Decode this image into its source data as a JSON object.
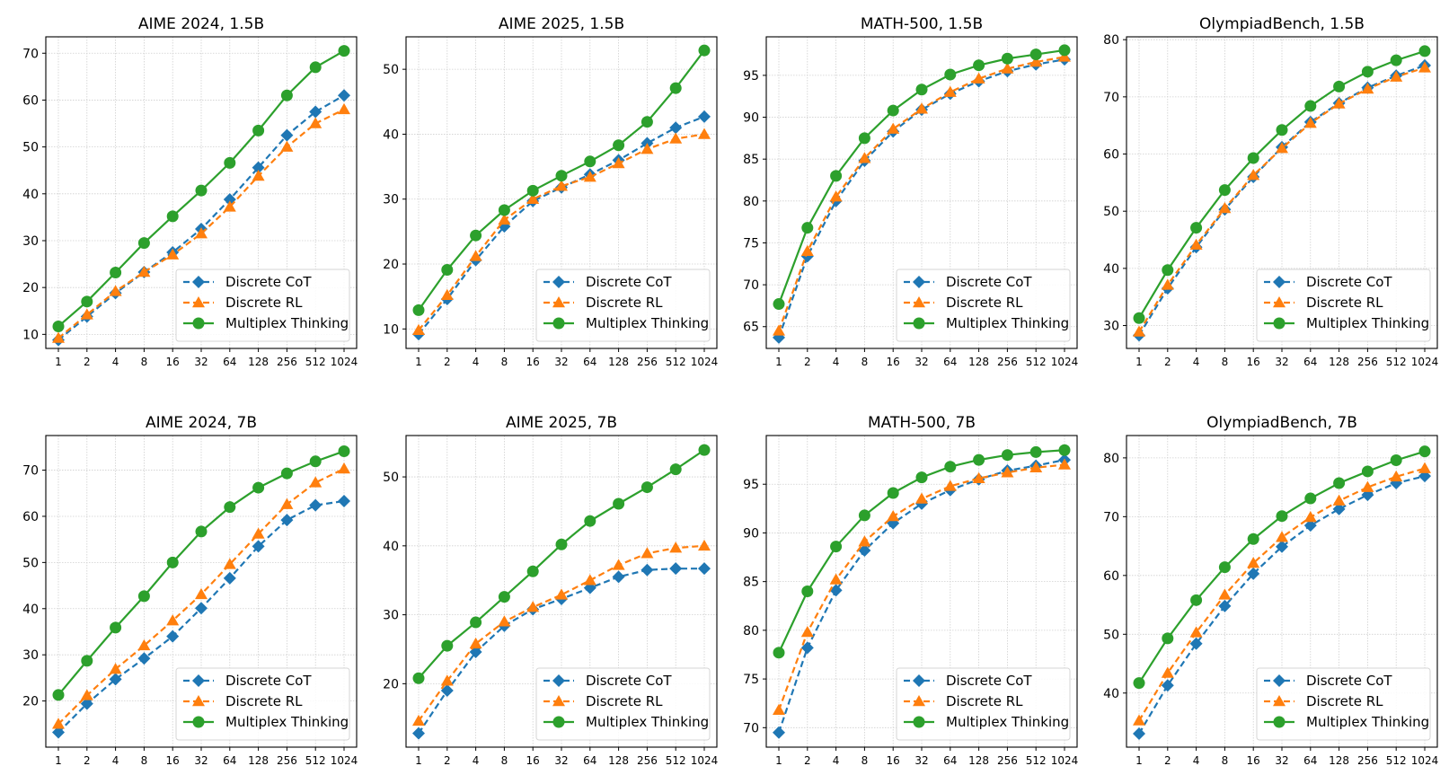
{
  "figure": {
    "legend_placement": "lower-right",
    "x_scale": "log2"
  },
  "series_styles": [
    {
      "name": "Discrete CoT",
      "color": "#1f77b4",
      "marker": "diamond",
      "line": "dashed"
    },
    {
      "name": "Discrete RL",
      "color": "#ff7f0e",
      "marker": "triangle",
      "line": "dashed"
    },
    {
      "name": "Multiplex Thinking",
      "color": "#2ca02c",
      "marker": "circle",
      "line": "solid"
    }
  ],
  "chart_data": [
    {
      "type": "line",
      "title": "AIME 2024, 1.5B",
      "xlabel": "",
      "ylabel": "",
      "categories": [
        "1",
        "2",
        "4",
        "8",
        "16",
        "32",
        "64",
        "128",
        "256",
        "512",
        "1024"
      ],
      "ylim": [
        7,
        73.5
      ],
      "yticks": [
        10,
        20,
        30,
        40,
        50,
        60,
        70
      ],
      "grid": true,
      "series": [
        {
          "name": "Discrete CoT",
          "values": [
            8.8,
            13.8,
            18.8,
            23.3,
            27.5,
            32.5,
            38.8,
            45.6,
            52.5,
            57.5,
            61.0
          ]
        },
        {
          "name": "Discrete RL",
          "values": [
            9.2,
            14.2,
            19.2,
            23.3,
            27.0,
            31.5,
            37.2,
            43.8,
            50.0,
            55.0,
            58.0
          ]
        },
        {
          "name": "Multiplex Thinking",
          "values": [
            11.7,
            17.0,
            23.2,
            29.5,
            35.2,
            40.7,
            46.6,
            53.5,
            61.0,
            67.0,
            70.5
          ]
        }
      ]
    },
    {
      "type": "line",
      "title": "AIME 2025, 1.5B",
      "xlabel": "",
      "ylabel": "",
      "categories": [
        "1",
        "2",
        "4",
        "8",
        "16",
        "32",
        "64",
        "128",
        "256",
        "512",
        "1024"
      ],
      "ylim": [
        7,
        55
      ],
      "yticks": [
        10,
        20,
        30,
        40,
        50
      ],
      "grid": true,
      "series": [
        {
          "name": "Discrete CoT",
          "values": [
            9.2,
            14.6,
            20.6,
            25.8,
            29.7,
            31.8,
            33.8,
            36.0,
            38.6,
            41.0,
            42.7
          ]
        },
        {
          "name": "Discrete RL",
          "values": [
            9.8,
            15.2,
            21.2,
            26.8,
            30.0,
            32.0,
            33.4,
            35.5,
            37.7,
            39.3,
            40.0
          ]
        },
        {
          "name": "Multiplex Thinking",
          "values": [
            12.9,
            19.1,
            24.4,
            28.3,
            31.3,
            33.6,
            35.8,
            38.3,
            41.9,
            47.1,
            52.9
          ]
        }
      ]
    },
    {
      "type": "line",
      "title": "MATH-500, 1.5B",
      "xlabel": "",
      "ylabel": "",
      "categories": [
        "1",
        "2",
        "4",
        "8",
        "16",
        "32",
        "64",
        "128",
        "256",
        "512",
        "1024"
      ],
      "ylim": [
        62.4,
        99.6
      ],
      "yticks": [
        65,
        70,
        75,
        80,
        85,
        90,
        95
      ],
      "grid": true,
      "series": [
        {
          "name": "Discrete CoT",
          "values": [
            63.7,
            73.4,
            80.0,
            84.8,
            88.3,
            90.9,
            92.8,
            94.3,
            95.5,
            96.3,
            96.9
          ]
        },
        {
          "name": "Discrete RL",
          "values": [
            64.5,
            74.0,
            80.5,
            85.1,
            88.6,
            91.0,
            93.0,
            94.6,
            95.8,
            96.6,
            97.2
          ]
        },
        {
          "name": "Multiplex Thinking",
          "values": [
            67.7,
            76.8,
            83.0,
            87.5,
            90.8,
            93.3,
            95.1,
            96.2,
            97.0,
            97.5,
            98.0
          ]
        }
      ]
    },
    {
      "type": "line",
      "title": "OlympiadBench, 1.5B",
      "xlabel": "",
      "ylabel": "",
      "categories": [
        "1",
        "2",
        "4",
        "8",
        "16",
        "32",
        "64",
        "128",
        "256",
        "512",
        "1024"
      ],
      "ylim": [
        26,
        80.5
      ],
      "yticks": [
        30,
        40,
        50,
        60,
        70,
        80
      ],
      "grid": true,
      "series": [
        {
          "name": "Discrete CoT",
          "values": [
            28.3,
            36.5,
            43.7,
            50.3,
            56.0,
            61.2,
            65.6,
            68.9,
            71.6,
            73.7,
            75.5
          ]
        },
        {
          "name": "Discrete RL",
          "values": [
            28.9,
            37.1,
            44.1,
            50.5,
            56.3,
            61.0,
            65.4,
            68.8,
            71.4,
            73.5,
            75.1
          ]
        },
        {
          "name": "Multiplex Thinking",
          "values": [
            31.3,
            39.7,
            47.1,
            53.7,
            59.3,
            64.2,
            68.4,
            71.8,
            74.4,
            76.4,
            78.0
          ]
        }
      ]
    },
    {
      "type": "line",
      "title": "AIME 2024, 7B",
      "xlabel": "",
      "ylabel": "",
      "categories": [
        "1",
        "2",
        "4",
        "8",
        "16",
        "32",
        "64",
        "128",
        "256",
        "512",
        "1024"
      ],
      "ylim": [
        10,
        77.5
      ],
      "yticks": [
        20,
        30,
        40,
        50,
        60,
        70
      ],
      "grid": true,
      "series": [
        {
          "name": "Discrete CoT",
          "values": [
            13.2,
            19.4,
            24.7,
            29.2,
            34.0,
            40.1,
            46.6,
            53.5,
            59.2,
            62.4,
            63.3
          ]
        },
        {
          "name": "Discrete RL",
          "values": [
            15.0,
            21.2,
            26.9,
            32.0,
            37.4,
            43.1,
            49.6,
            56.2,
            62.6,
            67.3,
            70.3
          ]
        },
        {
          "name": "Multiplex Thinking",
          "values": [
            21.3,
            28.7,
            35.9,
            42.7,
            50.0,
            56.7,
            62.0,
            66.2,
            69.3,
            71.9,
            74.1
          ]
        }
      ]
    },
    {
      "type": "line",
      "title": "AIME 2025, 7B",
      "xlabel": "",
      "ylabel": "",
      "categories": [
        "1",
        "2",
        "4",
        "8",
        "16",
        "32",
        "64",
        "128",
        "256",
        "512",
        "1024"
      ],
      "ylim": [
        10.8,
        56
      ],
      "yticks": [
        20,
        30,
        40,
        50
      ],
      "grid": true,
      "series": [
        {
          "name": "Discrete CoT",
          "values": [
            12.8,
            19.0,
            24.6,
            28.4,
            30.8,
            32.3,
            33.9,
            35.5,
            36.5,
            36.7,
            36.7
          ]
        },
        {
          "name": "Discrete RL",
          "values": [
            14.6,
            20.4,
            25.8,
            29.0,
            31.1,
            32.9,
            35.0,
            37.2,
            38.9,
            39.7,
            40.0
          ]
        },
        {
          "name": "Multiplex Thinking",
          "values": [
            20.8,
            25.5,
            28.9,
            32.6,
            36.3,
            40.2,
            43.6,
            46.1,
            48.5,
            51.1,
            53.9
          ]
        }
      ]
    },
    {
      "type": "line",
      "title": "MATH-500, 7B",
      "xlabel": "",
      "ylabel": "",
      "categories": [
        "1",
        "2",
        "4",
        "8",
        "16",
        "32",
        "64",
        "128",
        "256",
        "512",
        "1024"
      ],
      "ylim": [
        68,
        100
      ],
      "yticks": [
        70,
        75,
        80,
        85,
        90,
        95
      ],
      "grid": true,
      "series": [
        {
          "name": "Discrete CoT",
          "values": [
            69.5,
            78.2,
            84.1,
            88.2,
            91.0,
            93.0,
            94.4,
            95.5,
            96.4,
            96.9,
            97.5
          ]
        },
        {
          "name": "Discrete RL",
          "values": [
            71.8,
            79.8,
            85.2,
            89.1,
            91.7,
            93.5,
            94.8,
            95.6,
            96.2,
            96.7,
            97.0
          ]
        },
        {
          "name": "Multiplex Thinking",
          "values": [
            77.7,
            84.0,
            88.6,
            91.8,
            94.1,
            95.7,
            96.8,
            97.5,
            98.0,
            98.3,
            98.5
          ]
        }
      ]
    },
    {
      "type": "line",
      "title": "OlympiadBench, 7B",
      "xlabel": "",
      "ylabel": "",
      "categories": [
        "1",
        "2",
        "4",
        "8",
        "16",
        "32",
        "64",
        "128",
        "256",
        "512",
        "1024"
      ],
      "ylim": [
        30.8,
        83.8
      ],
      "yticks": [
        40,
        50,
        60,
        70,
        80
      ],
      "grid": true,
      "series": [
        {
          "name": "Discrete CoT",
          "values": [
            33.1,
            41.3,
            48.4,
            54.8,
            60.3,
            64.9,
            68.5,
            71.3,
            73.7,
            75.7,
            76.9
          ]
        },
        {
          "name": "Discrete RL",
          "values": [
            35.3,
            43.4,
            50.3,
            56.7,
            62.1,
            66.5,
            69.9,
            72.7,
            75.0,
            76.8,
            78.2
          ]
        },
        {
          "name": "Multiplex Thinking",
          "values": [
            41.7,
            49.3,
            55.8,
            61.4,
            66.2,
            70.1,
            73.1,
            75.7,
            77.7,
            79.6,
            81.1
          ]
        }
      ]
    }
  ]
}
